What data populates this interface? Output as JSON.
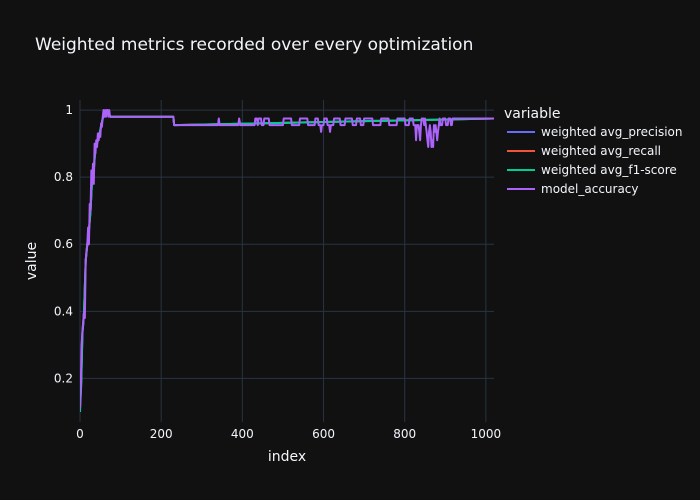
{
  "chart_data": {
    "type": "line",
    "title": "Weighted metrics recorded over every optimization",
    "xlabel": "index",
    "ylabel": "value",
    "xlim": [
      0,
      1020
    ],
    "ylim": [
      0.07,
      1.03
    ],
    "x_ticks": [
      0,
      200,
      400,
      600,
      800,
      1000
    ],
    "y_ticks": [
      0.2,
      0.4,
      0.6,
      0.8,
      1
    ],
    "grid": true,
    "background": "#111111",
    "grid_color": "#283442",
    "legend": {
      "title": "variable",
      "placement": "right"
    },
    "series": [
      {
        "name": "weighted avg_precision",
        "color": "#636efa",
        "points": [
          [
            0,
            0.12
          ],
          [
            3,
            0.2
          ],
          [
            6,
            0.34
          ],
          [
            10,
            0.4
          ],
          [
            14,
            0.55
          ],
          [
            18,
            0.6
          ],
          [
            22,
            0.64
          ],
          [
            26,
            0.7
          ],
          [
            30,
            0.8
          ],
          [
            34,
            0.82
          ],
          [
            38,
            0.89
          ],
          [
            42,
            0.9
          ],
          [
            46,
            0.92
          ],
          [
            50,
            0.94
          ],
          [
            55,
            0.97
          ],
          [
            60,
            0.99
          ],
          [
            70,
            0.99
          ],
          [
            75,
            0.98
          ],
          [
            230,
            0.98
          ],
          [
            232,
            0.955
          ],
          [
            1020,
            0.975
          ]
        ]
      },
      {
        "name": "weighted avg_recall",
        "color": "#ef553b",
        "points": [
          [
            0,
            0.11
          ],
          [
            3,
            0.19
          ],
          [
            6,
            0.34
          ],
          [
            10,
            0.4
          ],
          [
            14,
            0.55
          ],
          [
            18,
            0.6
          ],
          [
            22,
            0.64
          ],
          [
            26,
            0.7
          ],
          [
            30,
            0.8
          ],
          [
            34,
            0.82
          ],
          [
            38,
            0.89
          ],
          [
            42,
            0.9
          ],
          [
            46,
            0.92
          ],
          [
            50,
            0.94
          ],
          [
            55,
            0.97
          ],
          [
            60,
            0.99
          ],
          [
            70,
            0.99
          ],
          [
            75,
            0.98
          ],
          [
            230,
            0.98
          ],
          [
            232,
            0.955
          ],
          [
            1020,
            0.975
          ]
        ]
      },
      {
        "name": "weighted avg_f1-score",
        "color": "#00cc96",
        "points": [
          [
            0,
            0.1
          ],
          [
            3,
            0.18
          ],
          [
            6,
            0.33
          ],
          [
            10,
            0.4
          ],
          [
            14,
            0.55
          ],
          [
            18,
            0.6
          ],
          [
            22,
            0.64
          ],
          [
            26,
            0.7
          ],
          [
            30,
            0.8
          ],
          [
            34,
            0.82
          ],
          [
            38,
            0.89
          ],
          [
            42,
            0.9
          ],
          [
            46,
            0.92
          ],
          [
            50,
            0.94
          ],
          [
            55,
            0.97
          ],
          [
            60,
            0.99
          ],
          [
            70,
            0.99
          ],
          [
            75,
            0.98
          ],
          [
            230,
            0.98
          ],
          [
            232,
            0.955
          ],
          [
            1020,
            0.975
          ]
        ]
      },
      {
        "name": "model_accuracy",
        "color": "#ab63fa",
        "points": [
          [
            0,
            0.11
          ],
          [
            2,
            0.18
          ],
          [
            4,
            0.3
          ],
          [
            6,
            0.34
          ],
          [
            8,
            0.36
          ],
          [
            10,
            0.4
          ],
          [
            12,
            0.38
          ],
          [
            14,
            0.55
          ],
          [
            16,
            0.58
          ],
          [
            18,
            0.6
          ],
          [
            20,
            0.65
          ],
          [
            22,
            0.6
          ],
          [
            24,
            0.72
          ],
          [
            26,
            0.7
          ],
          [
            28,
            0.82
          ],
          [
            30,
            0.78
          ],
          [
            32,
            0.84
          ],
          [
            34,
            0.78
          ],
          [
            36,
            0.9
          ],
          [
            38,
            0.87
          ],
          [
            40,
            0.91
          ],
          [
            42,
            0.89
          ],
          [
            44,
            0.93
          ],
          [
            46,
            0.91
          ],
          [
            48,
            0.93
          ],
          [
            50,
            0.92
          ],
          [
            52,
            0.96
          ],
          [
            54,
            0.95
          ],
          [
            56,
            0.98
          ],
          [
            58,
            1.0
          ],
          [
            60,
            0.98
          ],
          [
            62,
            1.0
          ],
          [
            64,
            0.98
          ],
          [
            66,
            1.0
          ],
          [
            68,
            1.0
          ],
          [
            70,
            0.98
          ],
          [
            72,
            1.0
          ],
          [
            74,
            0.98
          ],
          [
            230,
            0.98
          ],
          [
            232,
            0.955
          ],
          [
            340,
            0.955
          ],
          [
            342,
            0.975
          ],
          [
            344,
            0.955
          ],
          [
            390,
            0.955
          ],
          [
            392,
            0.975
          ],
          [
            395,
            0.955
          ],
          [
            430,
            0.955
          ],
          [
            432,
            0.975
          ],
          [
            436,
            0.975
          ],
          [
            438,
            0.955
          ],
          [
            440,
            0.975
          ],
          [
            446,
            0.975
          ],
          [
            448,
            0.955
          ],
          [
            452,
            0.955
          ],
          [
            454,
            0.975
          ],
          [
            465,
            0.975
          ],
          [
            467,
            0.955
          ],
          [
            500,
            0.955
          ],
          [
            502,
            0.975
          ],
          [
            520,
            0.975
          ],
          [
            522,
            0.955
          ],
          [
            540,
            0.955
          ],
          [
            542,
            0.975
          ],
          [
            560,
            0.975
          ],
          [
            562,
            0.955
          ],
          [
            578,
            0.955
          ],
          [
            580,
            0.975
          ],
          [
            586,
            0.975
          ],
          [
            588,
            0.955
          ],
          [
            592,
            0.955
          ],
          [
            594,
            0.935
          ],
          [
            596,
            0.955
          ],
          [
            600,
            0.955
          ],
          [
            602,
            0.975
          ],
          [
            608,
            0.975
          ],
          [
            610,
            0.955
          ],
          [
            614,
            0.955
          ],
          [
            616,
            0.935
          ],
          [
            618,
            0.955
          ],
          [
            624,
            0.955
          ],
          [
            626,
            0.975
          ],
          [
            640,
            0.975
          ],
          [
            642,
            0.955
          ],
          [
            652,
            0.955
          ],
          [
            654,
            0.975
          ],
          [
            670,
            0.975
          ],
          [
            672,
            0.955
          ],
          [
            680,
            0.955
          ],
          [
            682,
            0.975
          ],
          [
            690,
            0.975
          ],
          [
            692,
            0.955
          ],
          [
            698,
            0.955
          ],
          [
            700,
            0.975
          ],
          [
            720,
            0.975
          ],
          [
            722,
            0.955
          ],
          [
            740,
            0.955
          ],
          [
            742,
            0.975
          ],
          [
            760,
            0.975
          ],
          [
            762,
            0.955
          ],
          [
            780,
            0.955
          ],
          [
            782,
            0.975
          ],
          [
            800,
            0.975
          ],
          [
            802,
            0.955
          ],
          [
            810,
            0.955
          ],
          [
            812,
            0.975
          ],
          [
            820,
            0.975
          ],
          [
            822,
            0.955
          ],
          [
            826,
            0.955
          ],
          [
            828,
            0.91
          ],
          [
            830,
            0.955
          ],
          [
            834,
            0.955
          ],
          [
            836,
            0.935
          ],
          [
            838,
            0.91
          ],
          [
            840,
            0.955
          ],
          [
            842,
            0.975
          ],
          [
            846,
            0.975
          ],
          [
            848,
            0.955
          ],
          [
            850,
            0.975
          ],
          [
            852,
            0.955
          ],
          [
            854,
            0.935
          ],
          [
            856,
            0.91
          ],
          [
            858,
            0.89
          ],
          [
            860,
            0.935
          ],
          [
            862,
            0.955
          ],
          [
            864,
            0.935
          ],
          [
            866,
            0.89
          ],
          [
            868,
            0.91
          ],
          [
            870,
            0.89
          ],
          [
            872,
            0.955
          ],
          [
            874,
            0.935
          ],
          [
            876,
            0.955
          ],
          [
            878,
            0.935
          ],
          [
            880,
            0.91
          ],
          [
            882,
            0.935
          ],
          [
            884,
            0.955
          ],
          [
            886,
            0.975
          ],
          [
            888,
            0.955
          ],
          [
            892,
            0.955
          ],
          [
            894,
            0.975
          ],
          [
            900,
            0.975
          ],
          [
            902,
            0.955
          ],
          [
            906,
            0.955
          ],
          [
            908,
            0.975
          ],
          [
            912,
            0.975
          ],
          [
            914,
            0.955
          ],
          [
            916,
            0.955
          ],
          [
            918,
            0.975
          ],
          [
            1020,
            0.975
          ]
        ]
      }
    ]
  }
}
